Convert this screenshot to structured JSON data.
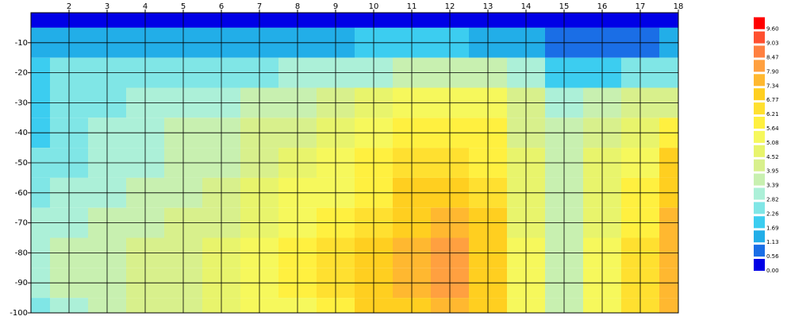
{
  "chart_data": {
    "type": "contour",
    "x": [
      1,
      2,
      3,
      4,
      5,
      6,
      7,
      8,
      9,
      10,
      11,
      12,
      13,
      14,
      15,
      16,
      17,
      18
    ],
    "y": [
      0,
      -10,
      -20,
      -30,
      -40,
      -50,
      -60,
      -70,
      -80,
      -90,
      -100
    ],
    "z": [
      [
        0.2,
        0.2,
        0.2,
        0.2,
        0.3,
        0.2,
        0.2,
        0.2,
        0.2,
        0.2,
        0.2,
        0.2,
        0.2,
        0.2,
        0.2,
        0.2,
        0.2,
        0.2
      ],
      [
        1.5,
        1.5,
        1.5,
        1.5,
        1.5,
        1.5,
        1.5,
        1.6,
        1.6,
        1.7,
        1.7,
        1.7,
        1.6,
        1.4,
        1.0,
        1.0,
        1.1,
        1.2
      ],
      [
        1.9,
        2.4,
        2.7,
        2.7,
        2.7,
        2.7,
        2.8,
        3.2,
        3.2,
        3.3,
        3.6,
        3.7,
        3.5,
        3.0,
        2.0,
        2.2,
        2.5,
        2.8
      ],
      [
        2.0,
        2.4,
        2.7,
        2.9,
        3.1,
        3.3,
        3.6,
        3.9,
        4.2,
        4.6,
        5.2,
        5.6,
        5.3,
        4.2,
        3.2,
        3.6,
        4.0,
        4.5
      ],
      [
        2.2,
        2.6,
        2.9,
        3.1,
        3.4,
        3.7,
        4.0,
        4.4,
        4.8,
        5.2,
        5.7,
        6.0,
        5.8,
        4.5,
        3.4,
        4.3,
        5.0,
        5.8
      ],
      [
        2.4,
        2.8,
        3.1,
        3.3,
        3.6,
        3.9,
        4.3,
        4.8,
        5.2,
        5.8,
        6.4,
        6.7,
        6.2,
        4.7,
        3.4,
        4.6,
        5.6,
        6.8
      ],
      [
        2.7,
        3.0,
        3.3,
        3.6,
        3.9,
        4.2,
        4.7,
        5.2,
        5.6,
        6.2,
        6.8,
        7.0,
        6.5,
        4.8,
        3.5,
        4.8,
        6.0,
        7.2
      ],
      [
        2.9,
        3.2,
        3.5,
        3.8,
        4.1,
        4.5,
        5.0,
        5.5,
        6.0,
        6.6,
        7.2,
        7.4,
        6.8,
        5.0,
        3.6,
        5.0,
        6.2,
        7.4
      ],
      [
        3.0,
        3.4,
        3.7,
        4.0,
        4.3,
        4.7,
        5.2,
        5.7,
        6.3,
        7.0,
        7.6,
        7.9,
        7.1,
        5.2,
        3.6,
        5.1,
        6.4,
        7.6
      ],
      [
        3.0,
        3.5,
        3.8,
        4.1,
        4.4,
        4.8,
        5.3,
        5.8,
        6.4,
        7.1,
        7.7,
        8.0,
        7.2,
        5.2,
        3.5,
        5.2,
        6.5,
        7.8
      ],
      [
        2.8,
        3.3,
        3.7,
        4.0,
        4.3,
        4.7,
        5.1,
        5.6,
        6.2,
        6.8,
        7.3,
        7.5,
        6.9,
        5.1,
        3.4,
        5.1,
        6.3,
        7.6
      ]
    ],
    "xlim": [
      1,
      18
    ],
    "ylim": [
      -100,
      0
    ],
    "xticks": [
      2,
      3,
      4,
      5,
      6,
      7,
      8,
      9,
      10,
      11,
      12,
      13,
      14,
      15,
      16,
      17,
      18
    ],
    "yticks": [
      -10,
      -20,
      -30,
      -40,
      -50,
      -60,
      -70,
      -80,
      -90,
      -100
    ],
    "grid": true,
    "levels": [
      {
        "value": 0,
        "label": "0.00"
      },
      {
        "value": 0.56,
        "label": "0.56"
      },
      {
        "value": 1.13,
        "label": "1.13"
      },
      {
        "value": 1.69,
        "label": "1.69"
      },
      {
        "value": 2.26,
        "label": "2.26"
      },
      {
        "value": 2.82,
        "label": "2.82"
      },
      {
        "value": 3.39,
        "label": "3.39"
      },
      {
        "value": 3.95,
        "label": "3.95"
      },
      {
        "value": 4.52,
        "label": "4.52"
      },
      {
        "value": 5.08,
        "label": "5.08"
      },
      {
        "value": 5.64,
        "label": "5.64"
      },
      {
        "value": 6.21,
        "label": "6.21"
      },
      {
        "value": 6.77,
        "label": "6.77"
      },
      {
        "value": 7.34,
        "label": "7.34"
      },
      {
        "value": 7.9,
        "label": "7.90"
      },
      {
        "value": 8.47,
        "label": "8.47"
      },
      {
        "value": 9.03,
        "label": "9.03"
      },
      {
        "value": 9.6,
        "label": "9.60"
      }
    ],
    "level_colors": [
      "#0000e6",
      "#1a6ee6",
      "#22aee8",
      "#3ccdf0",
      "#80e6e6",
      "#acf0d8",
      "#c8f0b0",
      "#d8f08c",
      "#e8f46c",
      "#f6f85c",
      "#fff040",
      "#ffe030",
      "#ffcf20",
      "#ffb830",
      "#ffa040",
      "#ff8040",
      "#ff5030",
      "#ff0000"
    ]
  }
}
